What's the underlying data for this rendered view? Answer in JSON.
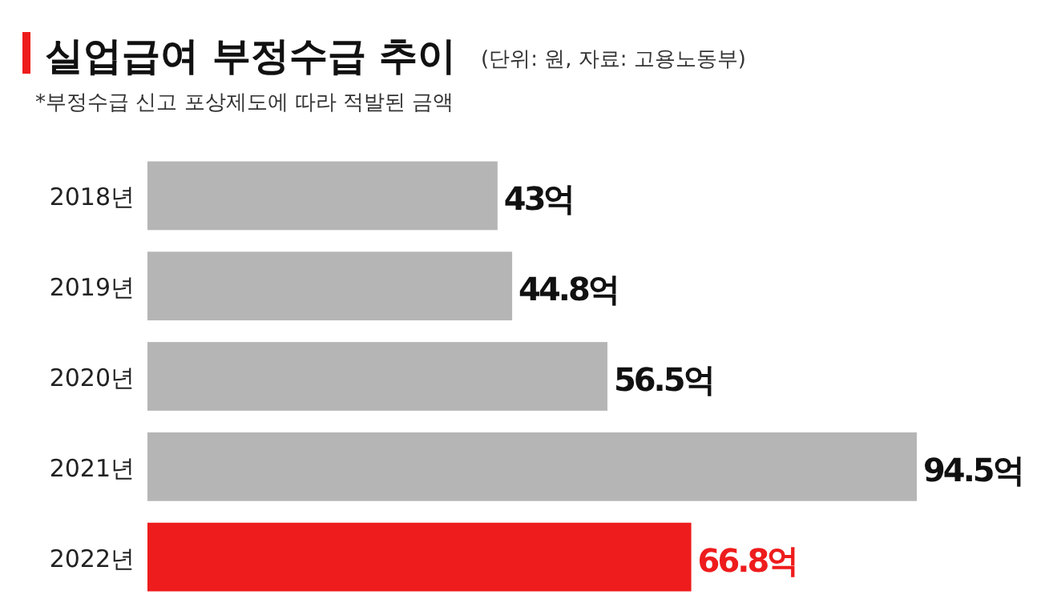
{
  "chart_data": {
    "type": "bar",
    "orientation": "horizontal",
    "title": "실업급여 부정수급 추이",
    "subtitle": "(단위: 원, 자료: 고용노동부)",
    "annotations": [
      "*부정수급 신고 포상제도에 따라 적발된 금액"
    ],
    "categories": [
      "2018년",
      "2019년",
      "2020년",
      "2021년",
      "2022년"
    ],
    "values": [
      43,
      44.8,
      56.5,
      94.5,
      66.8
    ],
    "colors": [
      "#b5b5b5",
      "#b5b5b5",
      "#b5b5b5",
      "#b5b5b5",
      "#ee1c1c"
    ],
    "value_labels": [
      "43억",
      "44.8억",
      "56.5억",
      "94.5억",
      "66.8억"
    ]
  }
}
